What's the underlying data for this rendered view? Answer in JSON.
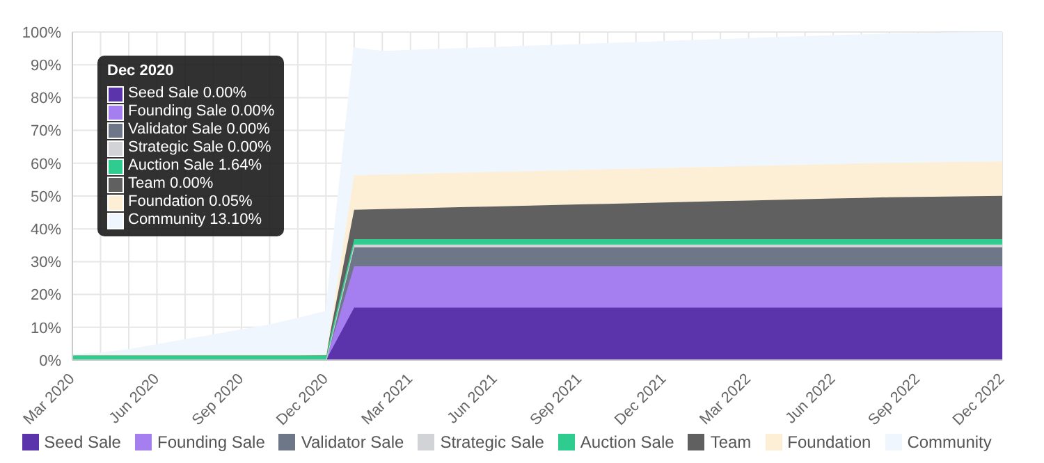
{
  "chart_data": {
    "type": "area",
    "stacked": true,
    "grid": true,
    "legend": "bottom",
    "categories": [
      "Mar 2020",
      null,
      null,
      "Jun 2020",
      null,
      null,
      "Sep 2020",
      null,
      null,
      "Dec 2020",
      null,
      null,
      "Mar 2021",
      null,
      null,
      "Jun 2021",
      null,
      null,
      "Sep 2021",
      null,
      null,
      "Dec 2021",
      null,
      null,
      "Mar 2022",
      null,
      null,
      "Jun 2022",
      null,
      null,
      "Sep 2022",
      null,
      null,
      "Dec 2022"
    ],
    "ylim": [
      0,
      100
    ],
    "yticks": [
      {
        "value": 0,
        "label": "0%"
      },
      {
        "value": 10,
        "label": "10%"
      },
      {
        "value": 20,
        "label": "20%"
      },
      {
        "value": 30,
        "label": "30%"
      },
      {
        "value": 40,
        "label": "40%"
      },
      {
        "value": 50,
        "label": "50%"
      },
      {
        "value": 60,
        "label": "60%"
      },
      {
        "value": 70,
        "label": "70%"
      },
      {
        "value": 80,
        "label": "80%"
      },
      {
        "value": 90,
        "label": "90%"
      },
      {
        "value": 100,
        "label": "100%"
      }
    ],
    "series": [
      {
        "name": "Seed Sale",
        "color": "#5b34ac",
        "values": [
          0,
          0,
          0,
          0,
          0,
          0,
          0,
          0,
          0,
          0,
          16,
          16,
          16,
          16,
          16,
          16,
          16,
          16,
          16,
          16,
          16,
          16,
          16,
          16,
          16,
          16,
          16,
          16,
          16,
          16,
          16,
          16,
          16,
          16
        ]
      },
      {
        "name": "Founding Sale",
        "color": "#a57ef0",
        "values": [
          0,
          0,
          0,
          0,
          0,
          0,
          0,
          0,
          0,
          0,
          12.6,
          12.6,
          12.6,
          12.6,
          12.6,
          12.6,
          12.6,
          12.6,
          12.6,
          12.6,
          12.6,
          12.6,
          12.6,
          12.6,
          12.6,
          12.6,
          12.6,
          12.6,
          12.6,
          12.6,
          12.6,
          12.6,
          12.6,
          12.6
        ]
      },
      {
        "name": "Validator Sale",
        "color": "#6e7787",
        "values": [
          0,
          0,
          0,
          0,
          0,
          0,
          0,
          0,
          0,
          0,
          5.8,
          5.8,
          5.8,
          5.8,
          5.8,
          5.8,
          5.8,
          5.8,
          5.8,
          5.8,
          5.8,
          5.8,
          5.8,
          5.8,
          5.8,
          5.8,
          5.8,
          5.8,
          5.8,
          5.8,
          5.8,
          5.8,
          5.8,
          5.8
        ]
      },
      {
        "name": "Strategic Sale",
        "color": "#d2d3d6",
        "values": [
          0,
          0,
          0,
          0,
          0,
          0,
          0,
          0,
          0,
          0,
          0.8,
          0.8,
          0.8,
          0.8,
          0.8,
          0.8,
          0.8,
          0.8,
          0.8,
          0.8,
          0.8,
          0.8,
          0.8,
          0.8,
          0.8,
          0.8,
          0.8,
          0.8,
          0.8,
          0.8,
          0.8,
          0.8,
          0.8,
          0.8
        ]
      },
      {
        "name": "Auction Sale",
        "color": "#2ecc8f",
        "values": [
          1.64,
          1.64,
          1.64,
          1.64,
          1.64,
          1.64,
          1.64,
          1.64,
          1.64,
          1.64,
          1.64,
          1.64,
          1.64,
          1.64,
          1.64,
          1.64,
          1.64,
          1.64,
          1.64,
          1.64,
          1.64,
          1.64,
          1.64,
          1.64,
          1.64,
          1.64,
          1.64,
          1.64,
          1.64,
          1.64,
          1.64,
          1.64,
          1.64,
          1.64
        ]
      },
      {
        "name": "Team",
        "color": "#606060",
        "values": [
          0,
          0,
          0,
          0,
          0,
          0,
          0,
          0,
          0,
          0,
          9.0,
          9.2,
          9.4,
          9.6,
          9.8,
          10.0,
          10.2,
          10.4,
          10.6,
          10.8,
          11.0,
          11.2,
          11.4,
          11.6,
          11.8,
          12.0,
          12.2,
          12.4,
          12.6,
          12.8,
          12.9,
          13.0,
          13.1,
          13.2
        ]
      },
      {
        "name": "Foundation",
        "color": "#fdefd6",
        "values": [
          0,
          0,
          0,
          0,
          0,
          0,
          0,
          0,
          0,
          0.05,
          10.5,
          10.5,
          10.5,
          10.5,
          10.5,
          10.5,
          10.5,
          10.5,
          10.5,
          10.5,
          10.5,
          10.5,
          10.5,
          10.5,
          10.5,
          10.5,
          10.5,
          10.5,
          10.5,
          10.5,
          10.5,
          10.5,
          10.5,
          10.5
        ]
      },
      {
        "name": "Community",
        "color": "#f0f6fd",
        "values": [
          0,
          0.5,
          1.5,
          3,
          4.5,
          6,
          7.5,
          9,
          11,
          13.1,
          38.7,
          37.5,
          37.6,
          37.7,
          37.8,
          37.9,
          38.0,
          38.1,
          38.2,
          38.3,
          38.4,
          38.5,
          38.6,
          38.7,
          38.8,
          38.9,
          39.0,
          39.1,
          39.1,
          39.2,
          39.2,
          39.3,
          39.3,
          39.3
        ]
      }
    ],
    "annotations": [
      "Dec 2020",
      "Seed Sale 0.00%",
      "Founding Sale 0.00%",
      "Validator Sale 0.00%",
      "Strategic Sale 0.00%",
      "Auction Sale 1.64%",
      "Team 0.00%",
      "Foundation 0.05%",
      "Community 13.10%"
    ]
  }
}
